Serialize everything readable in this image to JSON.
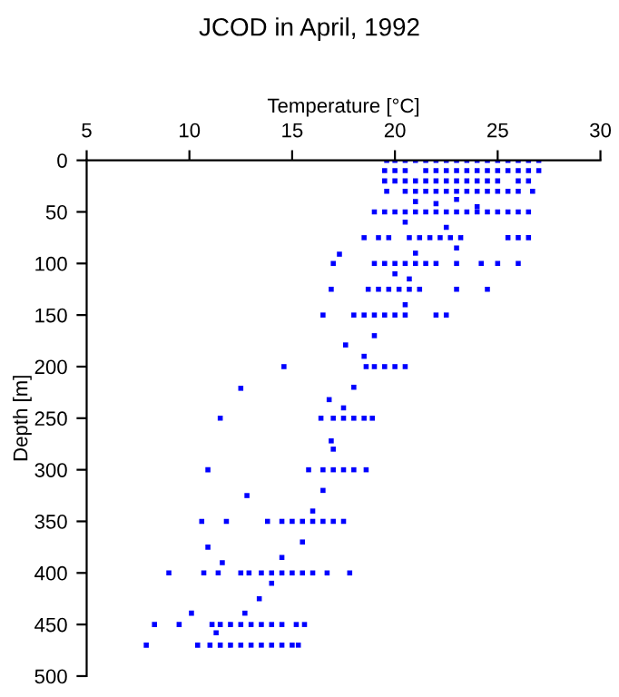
{
  "chart_data": {
    "type": "scatter",
    "title": "JCOD in April, 1992",
    "xlabel": "Temperature [°C]",
    "ylabel": "Depth [m]",
    "xlim": [
      5,
      30
    ],
    "xticks": [
      5,
      10,
      15,
      20,
      25,
      30
    ],
    "ylim": [
      500,
      0
    ],
    "yticks": [
      0,
      50,
      100,
      150,
      200,
      250,
      300,
      350,
      400,
      450,
      500
    ],
    "grid": false,
    "marker": "square",
    "series": [
      {
        "color": "#0000ff",
        "x": [
          19.6,
          20,
          20.5,
          21,
          21.5,
          22,
          22.5,
          23,
          23.5,
          24,
          24.5,
          25,
          25.5,
          26,
          26.5,
          27,
          19.5,
          20,
          20.5,
          21.5,
          22,
          22.5,
          23,
          23.5,
          24,
          24.5,
          25,
          25.5,
          26,
          26.5,
          27,
          19.5,
          20,
          20.5,
          21,
          21.5,
          22,
          22.5,
          23,
          23.5,
          24,
          24.5,
          25,
          26,
          26.5,
          19.6,
          20.5,
          21,
          21.5,
          22,
          22.5,
          23,
          23.5,
          24,
          24.5,
          25,
          25.5,
          26,
          26.7,
          19,
          19.5,
          20,
          20.5,
          21,
          21.5,
          22,
          22.5,
          23,
          23.5,
          24,
          24.5,
          25,
          25.5,
          26,
          26.5,
          18.5,
          19.2,
          19.7,
          20.7,
          21.2,
          21.7,
          22.2,
          22.7,
          23.2,
          25.5,
          26,
          26.5,
          17.0,
          19,
          19.5,
          20,
          20.5,
          21,
          21.5,
          22,
          23,
          24.2,
          25,
          26,
          16.9,
          18.7,
          19.2,
          19.7,
          20.2,
          20.7,
          21.2,
          23,
          24.5,
          16.5,
          18,
          18.5,
          19,
          19.5,
          20,
          20.5,
          22,
          22.5,
          14.6,
          18.6,
          19,
          19.5,
          20,
          20.5,
          11.5,
          16.4,
          17,
          17.5,
          18,
          18.5,
          18.9,
          10.9,
          15.8,
          16.5,
          17,
          17.5,
          18,
          18.6,
          10.6,
          11.8,
          13.8,
          14.5,
          15,
          15.5,
          16,
          16.5,
          17,
          17.5,
          9.0,
          10.7,
          11.4,
          12.5,
          12.9,
          13.5,
          14,
          14.5,
          15,
          15.5,
          16,
          16.7,
          17.8,
          8.3,
          9.5,
          11.1,
          11.5,
          12,
          12.5,
          13,
          13.5,
          14,
          14.5,
          15.2,
          15.6,
          7.9,
          10.4,
          11,
          11.5,
          12,
          12.5,
          13,
          13.5,
          14,
          14.5,
          15,
          15.3,
          17.3,
          12.5,
          17.6,
          16.8,
          16.9,
          12.8,
          10.9,
          11.6,
          13.4,
          10.1,
          12.7,
          11.3,
          21,
          22,
          23,
          24,
          20.5,
          22.5,
          23,
          21,
          20,
          19,
          18.5,
          18,
          17.5,
          17,
          16.5,
          16,
          15.5,
          14.5,
          14,
          20.7,
          20.5
        ],
        "values": [
          0,
          0,
          0,
          0,
          0,
          0,
          0,
          0,
          0,
          0,
          0,
          0,
          0,
          0,
          0,
          0,
          10,
          10,
          10,
          10,
          10,
          10,
          10,
          10,
          10,
          10,
          10,
          10,
          10,
          10,
          10,
          20,
          20,
          20,
          20,
          20,
          20,
          20,
          20,
          20,
          20,
          20,
          20,
          20,
          20,
          30,
          30,
          30,
          30,
          30,
          30,
          30,
          30,
          30,
          30,
          30,
          30,
          30,
          30,
          50,
          50,
          50,
          50,
          50,
          50,
          50,
          50,
          50,
          50,
          50,
          50,
          50,
          50,
          50,
          50,
          75,
          75,
          75,
          75,
          75,
          75,
          75,
          75,
          75,
          75,
          75,
          75,
          100,
          100,
          100,
          100,
          100,
          100,
          100,
          100,
          100,
          100,
          100,
          100,
          125,
          125,
          125,
          125,
          125,
          125,
          125,
          125,
          125,
          150,
          150,
          150,
          150,
          150,
          150,
          150,
          150,
          150,
          200,
          200,
          200,
          200,
          200,
          200,
          250,
          250,
          250,
          250,
          250,
          250,
          250,
          300,
          300,
          300,
          300,
          300,
          300,
          300,
          350,
          350,
          350,
          350,
          350,
          350,
          350,
          350,
          350,
          350,
          400,
          400,
          400,
          400,
          400,
          400,
          400,
          400,
          400,
          400,
          400,
          400,
          400,
          450,
          450,
          450,
          450,
          450,
          450,
          450,
          450,
          450,
          450,
          450,
          450,
          470,
          470,
          470,
          470,
          470,
          470,
          470,
          470,
          470,
          470,
          470,
          470,
          91,
          221,
          179,
          232,
          272,
          325,
          375,
          390,
          425,
          439,
          439,
          458,
          40,
          42,
          38,
          45,
          60,
          65,
          85,
          90,
          110,
          170,
          190,
          220,
          240,
          280,
          320,
          340,
          370,
          385,
          410,
          115,
          140
        ]
      }
    ]
  }
}
